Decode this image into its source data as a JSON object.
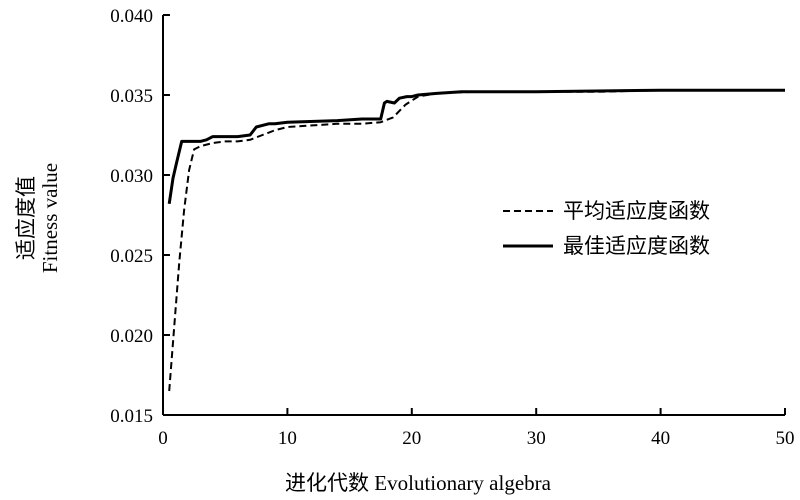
{
  "chart_data": {
    "type": "line",
    "xlabel": "进化代数 Evolutionary algebra",
    "ylabel_cn": "适应度值",
    "ylabel_en": "Fitness value",
    "xlim": [
      0,
      50
    ],
    "ylim": [
      0.015,
      0.04
    ],
    "x_ticks": [
      "0",
      "10",
      "20",
      "30",
      "40",
      "50"
    ],
    "y_ticks": [
      "0.015",
      "0.020",
      "0.025",
      "0.030",
      "0.035",
      "0.040"
    ],
    "grid": false,
    "legend_position": "right",
    "series": [
      {
        "name": "平均适应度函数",
        "style": "dashed",
        "color": "#000000",
        "x": [
          0.5,
          0.9,
          1.3,
          1.7,
          2.1,
          2.5,
          3.0,
          4.0,
          5.0,
          6.0,
          7.0,
          8.0,
          9.0,
          10.0,
          12.0,
          14.0,
          16.0,
          17.5,
          18.5,
          19.5,
          20.5,
          22.0,
          25.0,
          30.0,
          35.0,
          40.0,
          45.0,
          50.0
        ],
        "y": [
          0.0165,
          0.0205,
          0.0245,
          0.0278,
          0.0303,
          0.0316,
          0.0318,
          0.032,
          0.0321,
          0.0321,
          0.0322,
          0.0325,
          0.0328,
          0.033,
          0.0331,
          0.0332,
          0.0332,
          0.0333,
          0.0336,
          0.0344,
          0.0349,
          0.0351,
          0.0352,
          0.0352,
          0.0352,
          0.0353,
          0.0353,
          0.0353
        ]
      },
      {
        "name": "最佳适应度函数",
        "style": "solid",
        "color": "#000000",
        "x": [
          0.5,
          0.8,
          1.1,
          1.5,
          2.0,
          3.0,
          3.5,
          4.0,
          6.0,
          7.0,
          7.5,
          8.5,
          9.0,
          10.0,
          14.0,
          16.0,
          17.5,
          17.8,
          18.0,
          18.6,
          19.0,
          19.6,
          20.0,
          20.5,
          22.0,
          24.0,
          30.0,
          40.0,
          50.0
        ],
        "y": [
          0.0282,
          0.0298,
          0.0308,
          0.0321,
          0.0321,
          0.0321,
          0.0322,
          0.0324,
          0.0324,
          0.0325,
          0.033,
          0.0332,
          0.0332,
          0.0333,
          0.0334,
          0.0335,
          0.0335,
          0.0345,
          0.0346,
          0.0345,
          0.0348,
          0.0349,
          0.0349,
          0.035,
          0.0351,
          0.0352,
          0.0352,
          0.0353,
          0.0353
        ]
      }
    ]
  }
}
